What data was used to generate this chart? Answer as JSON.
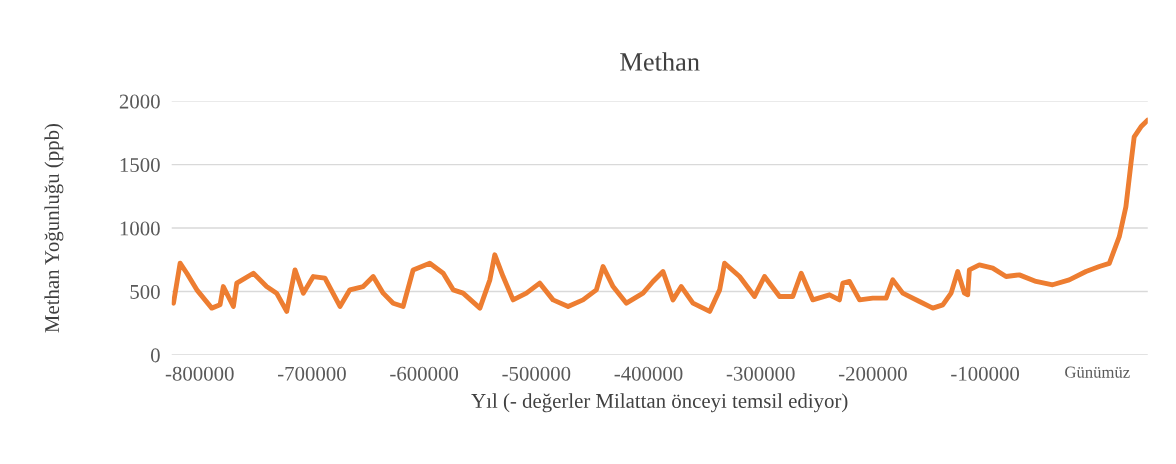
{
  "chart_data": {
    "type": "line",
    "title": "Methan",
    "xlabel": "Yıl (- değerler Milattan önceyi temsil ediyor)",
    "ylabel": "Methan Yoğunluğu (ppb)",
    "xlim": [
      -825000,
      45000
    ],
    "xticks": [
      -800000,
      -700000,
      -600000,
      -500000,
      -400000,
      -300000,
      -200000,
      -100000,
      {
        "value": 0,
        "label": "Günümüz"
      }
    ],
    "ylim": [
      0,
      2000
    ],
    "yticks": [
      0,
      500,
      1000,
      1500,
      2000
    ],
    "grid": "y",
    "marker": "none",
    "line_style": "solid",
    "series": [
      {
        "color": "#ed7d31",
        "x": [
          -823400,
          -817500,
          -811500,
          -802600,
          -789300,
          -781900,
          -779000,
          -770000,
          -767000,
          -752200,
          -740400,
          -731500,
          -722500,
          -715100,
          -707700,
          -698800,
          -688400,
          -675000,
          -666200,
          -654300,
          -645400,
          -636500,
          -627600,
          -618700,
          -609800,
          -595000,
          -583000,
          -574100,
          -565300,
          -550300,
          -541400,
          -537000,
          -529600,
          -520700,
          -508800,
          -497000,
          -485100,
          -471700,
          -458400,
          -446500,
          -440500,
          -431600,
          -419700,
          -404900,
          -396000,
          -387100,
          -378200,
          -370800,
          -360400,
          -345500,
          -336600,
          -332200,
          -318800,
          -305500,
          -296600,
          -283200,
          -271400,
          -263900,
          -253600,
          -238700,
          -229800,
          -226800,
          -220900,
          -211900,
          -200100,
          -188200,
          -182300,
          -173400,
          -158500,
          -146600,
          -137700,
          -130300,
          -124400,
          -118400,
          -115500,
          -114000,
          -105100,
          -93200,
          -81300,
          -69500,
          -54600,
          -39800,
          -25000,
          -10100,
          1800,
          10700,
          19600,
          25500,
          30000,
          32900,
          38900,
          44800
        ],
        "values": [
          408,
          723,
          644,
          513,
          369,
          395,
          539,
          382,
          566,
          644,
          539,
          487,
          343,
          670,
          487,
          618,
          605,
          382,
          513,
          539,
          618,
          487,
          408,
          382,
          670,
          723,
          644,
          513,
          487,
          369,
          592,
          789,
          618,
          434,
          487,
          566,
          434,
          382,
          434,
          513,
          697,
          539,
          408,
          487,
          579,
          658,
          434,
          539,
          408,
          343,
          513,
          723,
          618,
          461,
          618,
          461,
          461,
          644,
          434,
          474,
          434,
          566,
          579,
          434,
          448,
          448,
          592,
          487,
          421,
          369,
          395,
          487,
          658,
          487,
          474,
          671,
          710,
          684,
          618,
          631,
          579,
          553,
          592,
          658,
          697,
          722,
          932,
          1168,
          1509,
          1719,
          1798,
          1850
        ]
      }
    ]
  }
}
